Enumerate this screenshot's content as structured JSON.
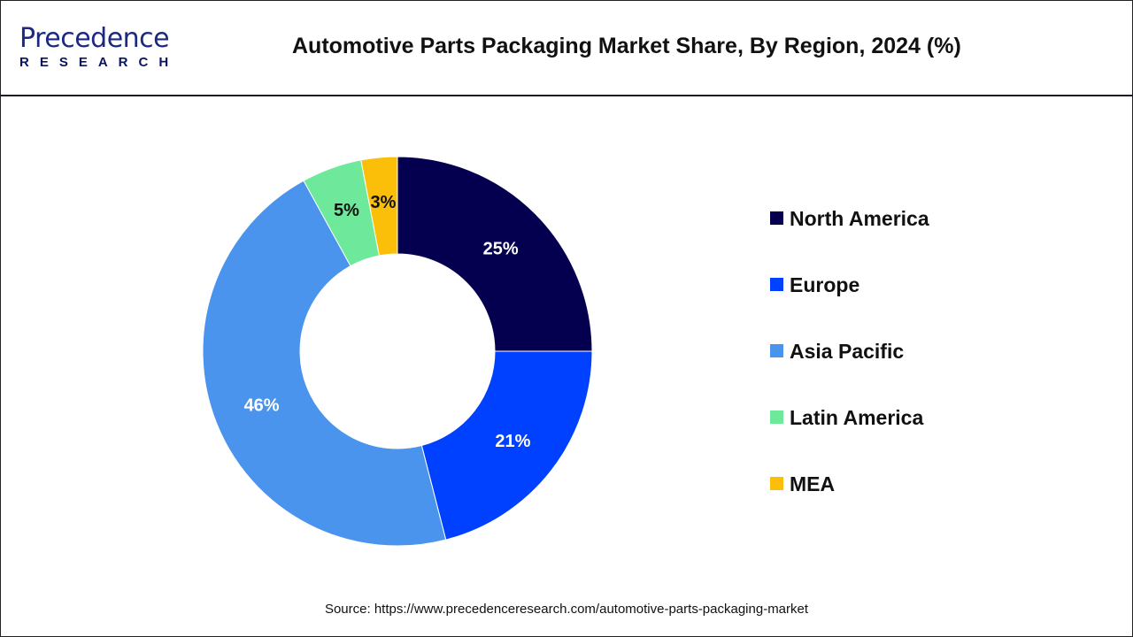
{
  "header": {
    "logo_text": "Precedence",
    "logo_sub": "RESEARCH",
    "title": "Automotive Parts Packaging Market Share, By Region, 2024 (%)"
  },
  "chart_data": {
    "type": "pie",
    "donut": true,
    "title": "Automotive Parts Packaging Market Share, By Region, 2024 (%)",
    "categories": [
      "North America",
      "Europe",
      "Asia Pacific",
      "Latin America",
      "MEA"
    ],
    "values": [
      25,
      21,
      46,
      5,
      3
    ],
    "labels": [
      "25%",
      "21%",
      "46%",
      "5%",
      "3%"
    ],
    "colors": [
      "#04004f",
      "#0040ff",
      "#4a94ee",
      "#6ee89a",
      "#fbbf0a"
    ],
    "label_colors": [
      "#ffffff",
      "#ffffff",
      "#ffffff",
      "#111111",
      "#111111"
    ],
    "legend_position": "right"
  },
  "source": "Source: https://www.precedenceresearch.com/automotive-parts-packaging-market"
}
